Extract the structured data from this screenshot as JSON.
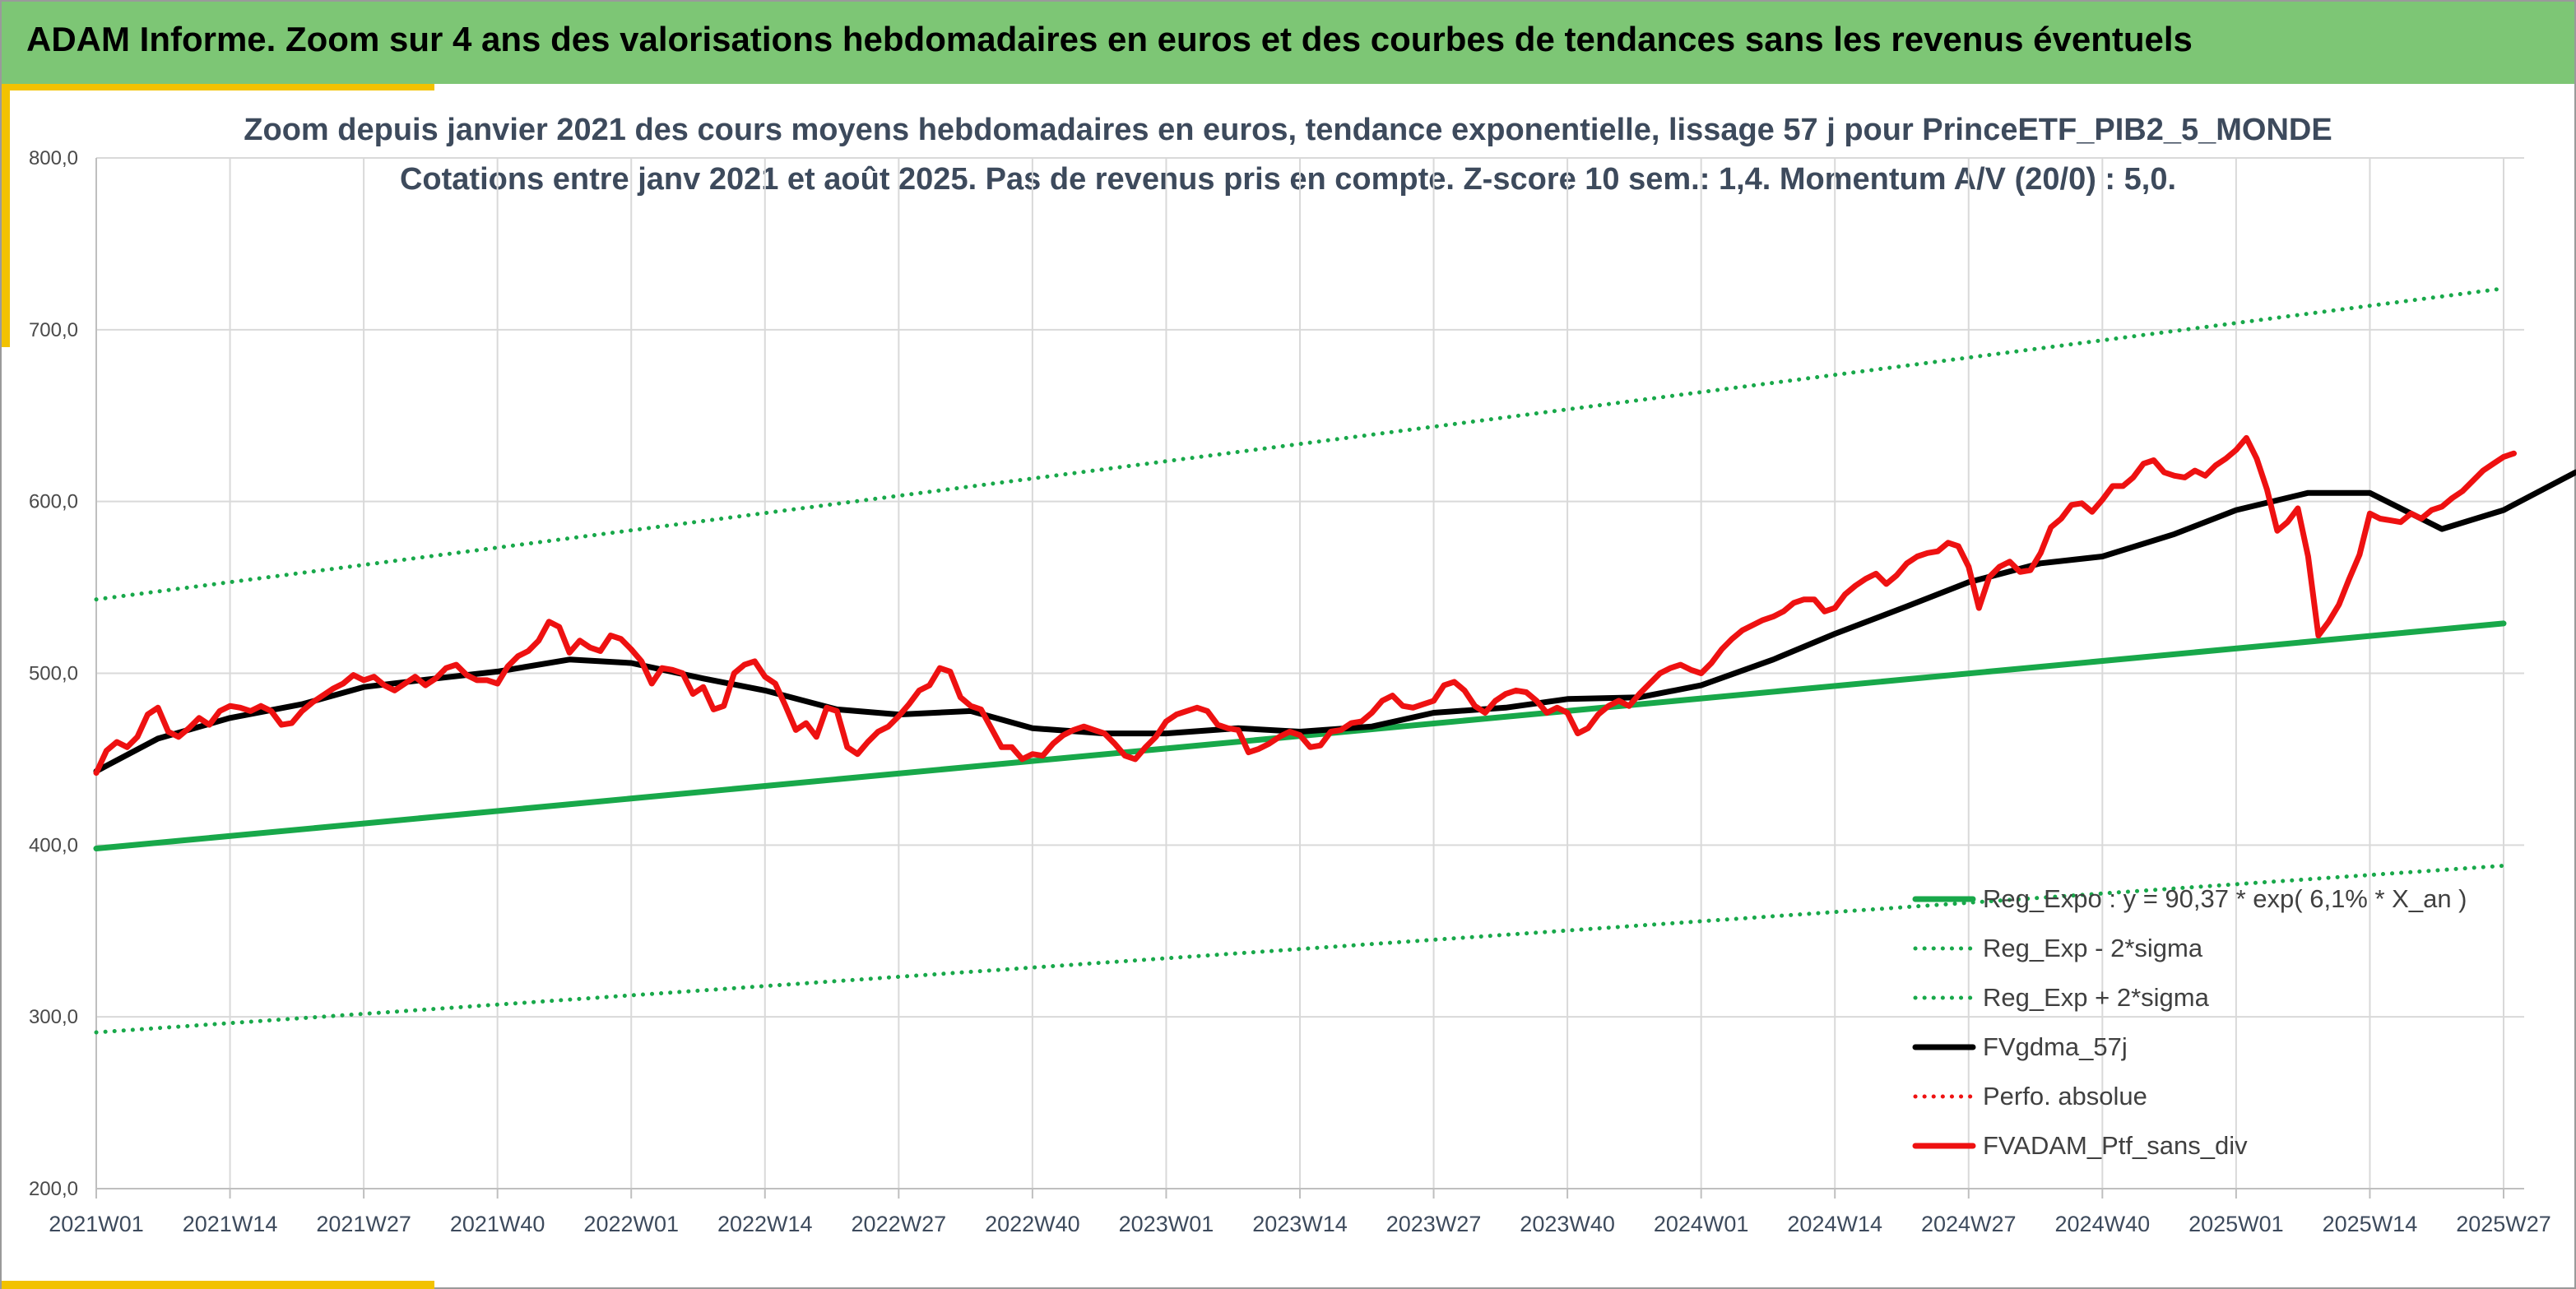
{
  "header": {
    "banner": "ADAM Informe. Zoom sur 4 ans des valorisations hebdomadaires en euros et des courbes de tendances sans les revenus éventuels"
  },
  "colors": {
    "banner_bg": "#7dc675",
    "accent": "#f2c200",
    "trend_green": "#18a84a",
    "price_red": "#ee1111",
    "sma_black": "#000000",
    "band_green": "#18a84a"
  },
  "chart_data": {
    "type": "line",
    "title": "Zoom depuis janvier 2021 des cours moyens hebdomadaires en euros, tendance exponentielle, lissage 57 j pour PrinceETF_PIB2_5_MONDE",
    "subtitle": "Cotations entre janv 2021 et août 2025. Pas de revenus pris en compte. Z-score 10 sem.: 1,4. Momentum A/V (20/0) : 5,0.",
    "ylim": [
      200,
      800
    ],
    "yticks": [
      "200,0",
      "300,0",
      "400,0",
      "500,0",
      "600,0",
      "700,0",
      "800,0"
    ],
    "xticks": [
      "2021W01",
      "2021W14",
      "2021W27",
      "2021W40",
      "2022W01",
      "2022W14",
      "2022W27",
      "2022W40",
      "2023W01",
      "2023W14",
      "2023W27",
      "2023W40",
      "2024W01",
      "2024W14",
      "2024W27",
      "2024W40",
      "2025W01",
      "2025W14",
      "2025W27"
    ],
    "grid": true,
    "legend_position": "bottom-right",
    "series": [
      {
        "name": "Reg_Expo : y = 90,37 * exp( 6,1% *  X_an )",
        "style": "solid-green",
        "points": [
          [
            0,
            398
          ],
          [
            234,
            529
          ]
        ]
      },
      {
        "name": "Reg_Exp - 2*sigma",
        "style": "dotted-green",
        "points": [
          [
            0,
            291
          ],
          [
            234,
            388
          ]
        ]
      },
      {
        "name": "Reg_Exp + 2*sigma",
        "style": "dotted-green",
        "points": [
          [
            0,
            543
          ],
          [
            234,
            724
          ]
        ]
      },
      {
        "name": "FVgdma_57j",
        "style": "solid-black",
        "points": [
          [
            0,
            443
          ],
          [
            6,
            462
          ],
          [
            13,
            474
          ],
          [
            20,
            482
          ],
          [
            26,
            492
          ],
          [
            33,
            497
          ],
          [
            39,
            501
          ],
          [
            46,
            508
          ],
          [
            52,
            506
          ],
          [
            59,
            497
          ],
          [
            65,
            490
          ],
          [
            72,
            479
          ],
          [
            78,
            476
          ],
          [
            85,
            478
          ],
          [
            91,
            468
          ],
          [
            98,
            465
          ],
          [
            104,
            465
          ],
          [
            111,
            468
          ],
          [
            117,
            466
          ],
          [
            124,
            469
          ],
          [
            130,
            477
          ],
          [
            137,
            480
          ],
          [
            143,
            485
          ],
          [
            150,
            486
          ],
          [
            156,
            493
          ],
          [
            163,
            508
          ],
          [
            169,
            523
          ],
          [
            176,
            539
          ],
          [
            182,
            553
          ],
          [
            189,
            564
          ],
          [
            195,
            568
          ],
          [
            202,
            581
          ],
          [
            208,
            595
          ],
          [
            215,
            605
          ],
          [
            221,
            605
          ],
          [
            228,
            584
          ],
          [
            234,
            595
          ],
          [
            241,
            617
          ]
        ]
      },
      {
        "name": "Perfo. absolue",
        "style": "dotted-red",
        "points": []
      },
      {
        "name": "FVADAM_Ptf_sans_div",
        "style": "solid-red",
        "points": [
          [
            0,
            442
          ],
          [
            1,
            455
          ],
          [
            2,
            460
          ],
          [
            3,
            457
          ],
          [
            4,
            463
          ],
          [
            5,
            476
          ],
          [
            6,
            480
          ],
          [
            7,
            466
          ],
          [
            8,
            463
          ],
          [
            9,
            468
          ],
          [
            10,
            474
          ],
          [
            11,
            470
          ],
          [
            12,
            478
          ],
          [
            13,
            481
          ],
          [
            14,
            480
          ],
          [
            15,
            478
          ],
          [
            16,
            481
          ],
          [
            17,
            478
          ],
          [
            18,
            470
          ],
          [
            19,
            471
          ],
          [
            20,
            478
          ],
          [
            21,
            483
          ],
          [
            22,
            487
          ],
          [
            23,
            491
          ],
          [
            24,
            494
          ],
          [
            25,
            499
          ],
          [
            26,
            496
          ],
          [
            27,
            498
          ],
          [
            28,
            493
          ],
          [
            29,
            490
          ],
          [
            30,
            494
          ],
          [
            31,
            498
          ],
          [
            32,
            493
          ],
          [
            33,
            497
          ],
          [
            34,
            503
          ],
          [
            35,
            505
          ],
          [
            36,
            499
          ],
          [
            37,
            496
          ],
          [
            38,
            496
          ],
          [
            39,
            494
          ],
          [
            40,
            504
          ],
          [
            41,
            510
          ],
          [
            42,
            513
          ],
          [
            43,
            519
          ],
          [
            44,
            530
          ],
          [
            45,
            527
          ],
          [
            46,
            512
          ],
          [
            47,
            519
          ],
          [
            48,
            515
          ],
          [
            49,
            513
          ],
          [
            50,
            522
          ],
          [
            51,
            520
          ],
          [
            52,
            514
          ],
          [
            53,
            507
          ],
          [
            54,
            494
          ],
          [
            55,
            503
          ],
          [
            56,
            502
          ],
          [
            57,
            500
          ],
          [
            58,
            488
          ],
          [
            59,
            492
          ],
          [
            60,
            479
          ],
          [
            61,
            481
          ],
          [
            62,
            500
          ],
          [
            63,
            505
          ],
          [
            64,
            507
          ],
          [
            65,
            498
          ],
          [
            66,
            494
          ],
          [
            67,
            481
          ],
          [
            68,
            467
          ],
          [
            69,
            471
          ],
          [
            70,
            463
          ],
          [
            71,
            480
          ],
          [
            72,
            478
          ],
          [
            73,
            457
          ],
          [
            74,
            453
          ],
          [
            75,
            460
          ],
          [
            76,
            466
          ],
          [
            77,
            469
          ],
          [
            78,
            475
          ],
          [
            79,
            482
          ],
          [
            80,
            490
          ],
          [
            81,
            493
          ],
          [
            82,
            503
          ],
          [
            83,
            501
          ],
          [
            84,
            486
          ],
          [
            85,
            481
          ],
          [
            86,
            479
          ],
          [
            87,
            468
          ],
          [
            88,
            457
          ],
          [
            89,
            457
          ],
          [
            90,
            450
          ],
          [
            91,
            453
          ],
          [
            92,
            452
          ],
          [
            93,
            459
          ],
          [
            94,
            464
          ],
          [
            95,
            467
          ],
          [
            96,
            469
          ],
          [
            97,
            467
          ],
          [
            98,
            465
          ],
          [
            99,
            459
          ],
          [
            100,
            452
          ],
          [
            101,
            450
          ],
          [
            102,
            457
          ],
          [
            103,
            463
          ],
          [
            104,
            472
          ],
          [
            105,
            476
          ],
          [
            106,
            478
          ],
          [
            107,
            480
          ],
          [
            108,
            478
          ],
          [
            109,
            470
          ],
          [
            110,
            468
          ],
          [
            111,
            467
          ],
          [
            112,
            454
          ],
          [
            113,
            456
          ],
          [
            114,
            459
          ],
          [
            115,
            463
          ],
          [
            116,
            466
          ],
          [
            117,
            464
          ],
          [
            118,
            457
          ],
          [
            119,
            458
          ],
          [
            120,
            466
          ],
          [
            121,
            467
          ],
          [
            122,
            471
          ],
          [
            123,
            472
          ],
          [
            124,
            477
          ],
          [
            125,
            484
          ],
          [
            126,
            487
          ],
          [
            127,
            481
          ],
          [
            128,
            480
          ],
          [
            129,
            482
          ],
          [
            130,
            484
          ],
          [
            131,
            493
          ],
          [
            132,
            495
          ],
          [
            133,
            490
          ],
          [
            134,
            481
          ],
          [
            135,
            477
          ],
          [
            136,
            484
          ],
          [
            137,
            488
          ],
          [
            138,
            490
          ],
          [
            139,
            489
          ],
          [
            140,
            484
          ],
          [
            141,
            477
          ],
          [
            142,
            480
          ],
          [
            143,
            477
          ],
          [
            144,
            465
          ],
          [
            145,
            468
          ],
          [
            146,
            476
          ],
          [
            147,
            481
          ],
          [
            148,
            484
          ],
          [
            149,
            481
          ],
          [
            150,
            488
          ],
          [
            151,
            494
          ],
          [
            152,
            500
          ],
          [
            153,
            503
          ],
          [
            154,
            505
          ],
          [
            155,
            502
          ],
          [
            156,
            500
          ],
          [
            157,
            506
          ],
          [
            158,
            514
          ],
          [
            159,
            520
          ],
          [
            160,
            525
          ],
          [
            161,
            528
          ],
          [
            162,
            531
          ],
          [
            163,
            533
          ],
          [
            164,
            536
          ],
          [
            165,
            541
          ],
          [
            166,
            543
          ],
          [
            167,
            543
          ],
          [
            168,
            536
          ],
          [
            169,
            538
          ],
          [
            170,
            546
          ],
          [
            171,
            551
          ],
          [
            172,
            555
          ],
          [
            173,
            558
          ],
          [
            174,
            552
          ],
          [
            175,
            557
          ],
          [
            176,
            564
          ],
          [
            177,
            568
          ],
          [
            178,
            570
          ],
          [
            179,
            571
          ],
          [
            180,
            576
          ],
          [
            181,
            574
          ],
          [
            182,
            562
          ],
          [
            183,
            538
          ],
          [
            184,
            556
          ],
          [
            185,
            562
          ],
          [
            186,
            565
          ],
          [
            187,
            559
          ],
          [
            188,
            560
          ],
          [
            189,
            570
          ],
          [
            190,
            585
          ],
          [
            191,
            590
          ],
          [
            192,
            598
          ],
          [
            193,
            599
          ],
          [
            194,
            594
          ],
          [
            195,
            601
          ],
          [
            196,
            609
          ],
          [
            197,
            609
          ],
          [
            198,
            614
          ],
          [
            199,
            622
          ],
          [
            200,
            624
          ],
          [
            201,
            617
          ],
          [
            202,
            615
          ],
          [
            203,
            614
          ],
          [
            204,
            618
          ],
          [
            205,
            615
          ],
          [
            206,
            621
          ],
          [
            207,
            625
          ],
          [
            208,
            630
          ],
          [
            209,
            637
          ],
          [
            210,
            625
          ],
          [
            211,
            607
          ],
          [
            212,
            583
          ],
          [
            213,
            588
          ],
          [
            214,
            596
          ],
          [
            215,
            568
          ],
          [
            216,
            522
          ],
          [
            217,
            530
          ],
          [
            218,
            540
          ],
          [
            219,
            555
          ],
          [
            220,
            569
          ],
          [
            221,
            593
          ],
          [
            222,
            590
          ],
          [
            223,
            589
          ],
          [
            224,
            588
          ],
          [
            225,
            593
          ],
          [
            226,
            590
          ],
          [
            227,
            595
          ],
          [
            228,
            597
          ],
          [
            229,
            602
          ],
          [
            230,
            606
          ],
          [
            231,
            612
          ],
          [
            232,
            618
          ],
          [
            233,
            622
          ],
          [
            234,
            626
          ],
          [
            235,
            628
          ]
        ]
      }
    ]
  }
}
